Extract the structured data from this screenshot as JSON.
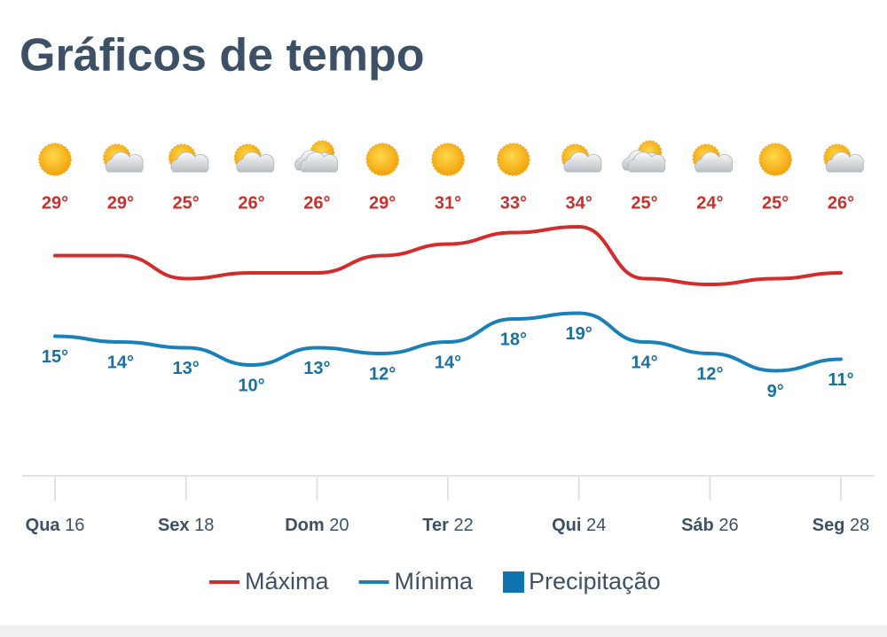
{
  "chart_data": {
    "type": "line",
    "title": "Gráficos de tempo",
    "categories": [
      "Qua 16",
      null,
      "Sex 18",
      null,
      "Dom 20",
      null,
      "Ter 22",
      null,
      "Qui 24",
      null,
      "Sáb 26",
      null,
      "Seg 28"
    ],
    "series": [
      {
        "name": "Máxima",
        "color": "#d42b2b",
        "values": [
          29,
          29,
          25,
          26,
          26,
          29,
          31,
          33,
          34,
          25,
          24,
          25,
          26
        ],
        "value_labels": [
          "29°",
          "29°",
          "25°",
          "26°",
          "26°",
          "29°",
          "31°",
          "33°",
          "34°",
          "25°",
          "24°",
          "25°",
          "26°"
        ]
      },
      {
        "name": "Mínima",
        "color": "#1a80b8",
        "values": [
          15,
          14,
          13,
          10,
          13,
          12,
          14,
          18,
          19,
          14,
          12,
          9,
          11
        ],
        "value_labels": [
          "15°",
          "14°",
          "13°",
          "10°",
          "13°",
          "12°",
          "14°",
          "18°",
          "19°",
          "14°",
          "12°",
          "9°",
          "11°"
        ]
      }
    ],
    "precipitation": {
      "name": "Precipitação",
      "color": "#0f73b0"
    },
    "ylim": [
      -10,
      58
    ]
  }
}
